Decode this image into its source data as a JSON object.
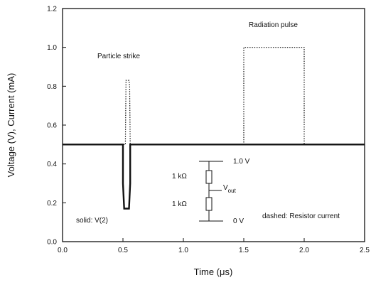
{
  "chart_data": {
    "type": "line",
    "xlabel": "Time (μs)",
    "ylabel": "Voltage (V), Current (mA)",
    "xlim": [
      0.0,
      2.5
    ],
    "ylim": [
      0.0,
      1.2
    ],
    "xticks": [
      "0.0",
      "0.5",
      "1.0",
      "1.5",
      "2.0",
      "2.5"
    ],
    "yticks": [
      "0.0",
      "0.2",
      "0.4",
      "0.6",
      "0.8",
      "1.0",
      "1.2"
    ],
    "grid": false,
    "series": [
      {
        "name": "V(2)",
        "style": "solid",
        "x": [
          0.0,
          0.5,
          0.5,
          0.51,
          0.55,
          0.56,
          0.56,
          2.5
        ],
        "y": [
          0.5,
          0.5,
          0.3,
          0.17,
          0.17,
          0.3,
          0.5,
          0.5
        ]
      },
      {
        "name": "Resistor current",
        "style": "dotted",
        "x": [
          0.0,
          0.52,
          0.525,
          0.55,
          0.555,
          0.56,
          1.5,
          1.5,
          2.0,
          2.0,
          2.5
        ],
        "y": [
          0.5,
          0.5,
          0.83,
          0.83,
          0.8,
          0.5,
          0.5,
          1.0,
          1.0,
          0.5,
          0.5
        ]
      }
    ],
    "annotations": {
      "particle_strike": "Particle strike",
      "radiation_pulse": "Radiation pulse",
      "solid_label": "solid: V(2)",
      "dashed_label": "dashed: Resistor current"
    },
    "inset_circuit": {
      "top_voltage": "1.0 V",
      "bottom_voltage": "0 V",
      "resistor_top": "1 kΩ",
      "resistor_bottom": "1 kΩ",
      "output_main": "V",
      "output_sub": "out"
    }
  }
}
